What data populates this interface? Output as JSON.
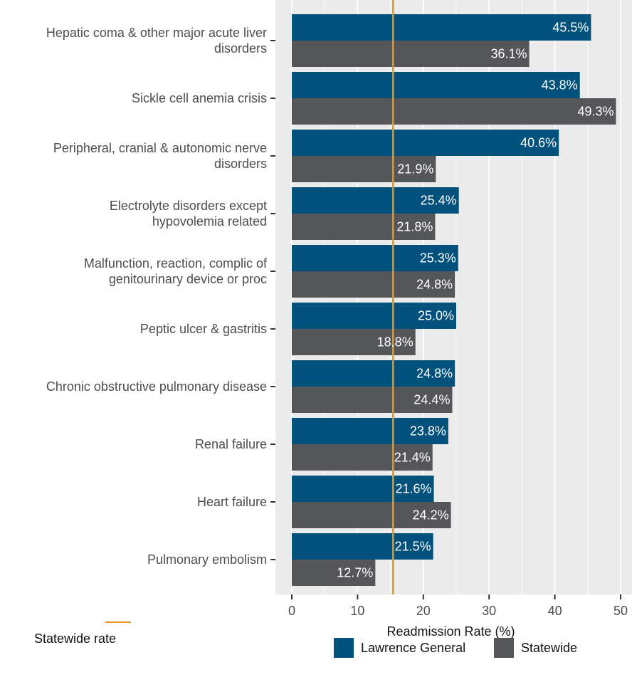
{
  "chart_data": {
    "type": "bar",
    "orientation": "horizontal",
    "xlabel": "Readmission Rate (%)",
    "xlim": [
      0,
      50
    ],
    "x_ticks": [
      0,
      10,
      20,
      30,
      40,
      50
    ],
    "grid": true,
    "categories": [
      "Hepatic coma & other major acute liver\ndisorders",
      "Sickle cell anemia crisis",
      "Peripheral, cranial & autonomic nerve\ndisorders",
      "Electrolyte disorders except\nhypovolemia related",
      "Malfunction, reaction, complic of\ngenitourinary device or proc",
      "Peptic ulcer & gastritis",
      "Chronic obstructive pulmonary disease",
      "Renal failure",
      "Heart failure",
      "Pulmonary embolism"
    ],
    "series": [
      {
        "name": "Lawrence General",
        "color": "#00517c",
        "values": [
          45.5,
          43.8,
          40.6,
          25.4,
          25.3,
          25.0,
          24.8,
          23.8,
          21.6,
          21.5
        ],
        "labels": [
          "45.5%",
          "43.8%",
          "40.6%",
          "25.4%",
          "25.3%",
          "25.0%",
          "24.8%",
          "23.8%",
          "21.6%",
          "21.5%"
        ]
      },
      {
        "name": "Statewide",
        "color": "#55565a",
        "values": [
          36.1,
          49.3,
          21.9,
          21.8,
          24.8,
          18.8,
          24.4,
          21.4,
          24.2,
          12.7
        ],
        "labels": [
          "36.1%",
          "49.3%",
          "21.9%",
          "21.8%",
          "24.8%",
          "18.8%",
          "24.4%",
          "21.4%",
          "24.2%",
          "12.7%"
        ]
      }
    ],
    "reference_line": {
      "label": "Statewide rate",
      "value": 15.4,
      "color": "#e8961e"
    },
    "legend_position": "bottom-right"
  }
}
